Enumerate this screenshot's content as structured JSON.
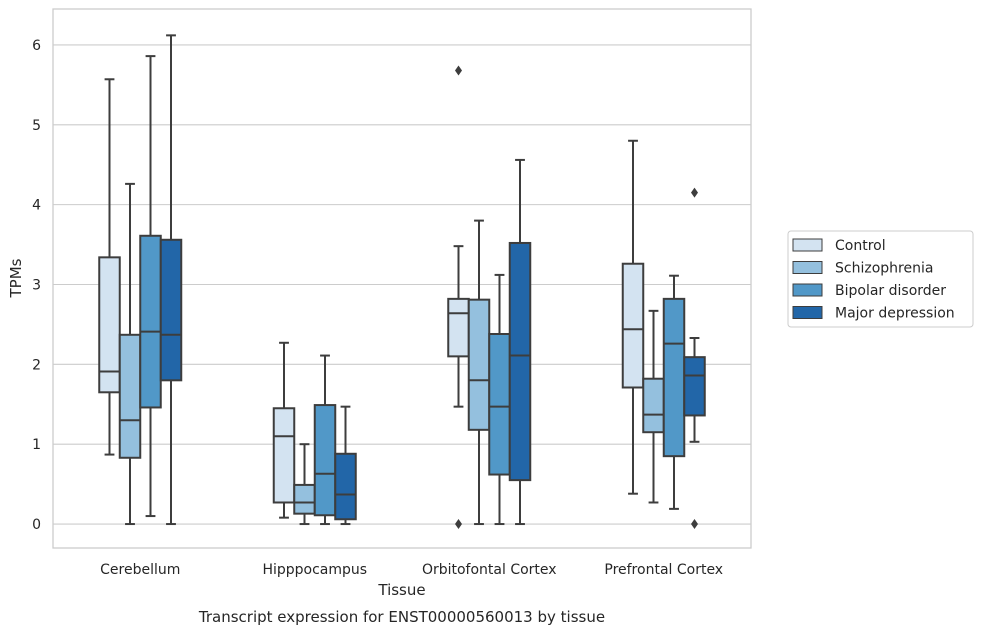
{
  "chart_data": {
    "type": "box",
    "title": "",
    "caption": "Transcript expression for ENST00000560013 by tissue",
    "xlabel": "Tissue",
    "ylabel": "TPMs",
    "ylim": [
      -0.3,
      6.45
    ],
    "yticks": [
      0,
      1,
      2,
      3,
      4,
      5,
      6
    ],
    "grid": true,
    "legend_position": "right",
    "categories": [
      "Cerebellum",
      "Hipppocampus",
      "Orbitofontal Cortex",
      "Prefrontal Cortex"
    ],
    "series": [
      {
        "name": "Control",
        "color": "#d3e3f1",
        "boxes": [
          {
            "whislo": 0.87,
            "q1": 1.65,
            "med": 1.91,
            "q3": 3.34,
            "whishi": 5.57,
            "fliers": []
          },
          {
            "whislo": 0.08,
            "q1": 0.27,
            "med": 1.1,
            "q3": 1.45,
            "whishi": 2.27,
            "fliers": []
          },
          {
            "whislo": 1.47,
            "q1": 2.1,
            "med": 2.64,
            "q3": 2.82,
            "whishi": 3.48,
            "fliers": [
              0.0,
              5.68
            ]
          },
          {
            "whislo": 0.38,
            "q1": 1.71,
            "med": 2.44,
            "q3": 3.26,
            "whishi": 4.8,
            "fliers": []
          }
        ]
      },
      {
        "name": "Schizophrenia",
        "color": "#94c0de",
        "boxes": [
          {
            "whislo": 0.0,
            "q1": 0.83,
            "med": 1.3,
            "q3": 2.37,
            "whishi": 4.26,
            "fliers": []
          },
          {
            "whislo": 0.0,
            "q1": 0.13,
            "med": 0.27,
            "q3": 0.49,
            "whishi": 1.0,
            "fliers": []
          },
          {
            "whislo": 0.0,
            "q1": 1.18,
            "med": 1.8,
            "q3": 2.81,
            "whishi": 3.8,
            "fliers": []
          },
          {
            "whislo": 0.27,
            "q1": 1.15,
            "med": 1.37,
            "q3": 1.82,
            "whishi": 2.67,
            "fliers": []
          }
        ]
      },
      {
        "name": "Bipolar disorder",
        "color": "#5198c8",
        "boxes": [
          {
            "whislo": 0.1,
            "q1": 1.46,
            "med": 2.41,
            "q3": 3.61,
            "whishi": 5.86,
            "fliers": []
          },
          {
            "whislo": 0.0,
            "q1": 0.11,
            "med": 0.63,
            "q3": 1.49,
            "whishi": 2.11,
            "fliers": []
          },
          {
            "whislo": 0.0,
            "q1": 0.62,
            "med": 1.47,
            "q3": 2.38,
            "whishi": 3.12,
            "fliers": []
          },
          {
            "whislo": 0.19,
            "q1": 0.85,
            "med": 2.26,
            "q3": 2.82,
            "whishi": 3.11,
            "fliers": []
          }
        ]
      },
      {
        "name": "Major depression",
        "color": "#2266a8",
        "boxes": [
          {
            "whislo": 0.0,
            "q1": 1.8,
            "med": 2.37,
            "q3": 3.56,
            "whishi": 6.12,
            "fliers": []
          },
          {
            "whislo": 0.0,
            "q1": 0.06,
            "med": 0.37,
            "q3": 0.88,
            "whishi": 1.47,
            "fliers": []
          },
          {
            "whislo": 0.0,
            "q1": 0.55,
            "med": 2.11,
            "q3": 3.52,
            "whishi": 4.56,
            "fliers": []
          },
          {
            "whislo": 1.03,
            "q1": 1.36,
            "med": 1.86,
            "q3": 2.09,
            "whishi": 2.33,
            "fliers": [
              0.0,
              4.15
            ]
          }
        ]
      }
    ]
  }
}
